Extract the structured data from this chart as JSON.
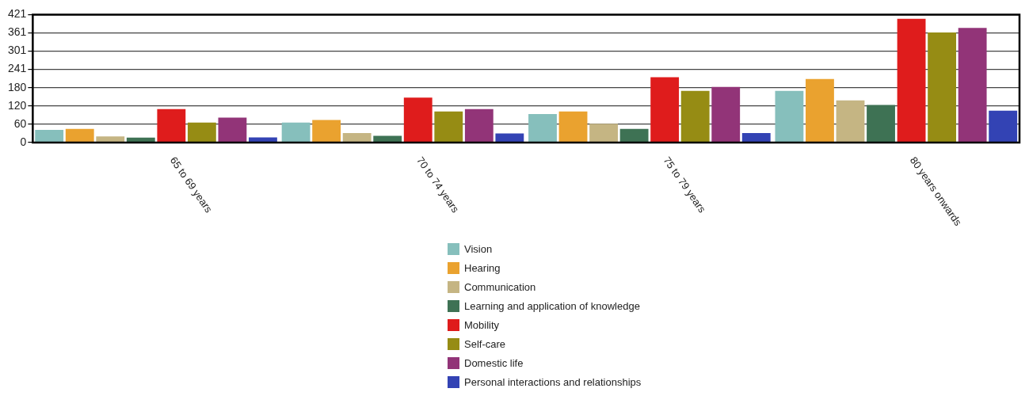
{
  "chart_data": {
    "type": "bar",
    "categories": [
      "65 to 69 years",
      "70 to 74 years",
      "75 to 79 years",
      "80 years onwards"
    ],
    "series": [
      {
        "name": "Vision",
        "color": "#86bfbc",
        "values": [
          42,
          66,
          94,
          170
        ]
      },
      {
        "name": "Hearing",
        "color": "#eaa22f",
        "values": [
          45,
          74,
          102,
          209
        ]
      },
      {
        "name": "Communication",
        "color": "#c5b583",
        "values": [
          20,
          31,
          62,
          139
        ]
      },
      {
        "name": "Learning and application of knowledge",
        "color": "#3e7254",
        "values": [
          16,
          22,
          45,
          124
        ]
      },
      {
        "name": "Mobility",
        "color": "#df1c1c",
        "values": [
          110,
          148,
          215,
          407
        ]
      },
      {
        "name": "Self-care",
        "color": "#968c14",
        "values": [
          66,
          102,
          170,
          362
        ]
      },
      {
        "name": "Domestic life",
        "color": "#923478",
        "values": [
          82,
          110,
          183,
          377
        ]
      },
      {
        "name": "Personal interactions and relationships",
        "color": "#3343b4",
        "values": [
          17,
          30,
          31,
          105
        ]
      }
    ],
    "ylim": [
      0,
      421
    ],
    "yticks": [
      0,
      60,
      120,
      180,
      241,
      301,
      361,
      421
    ],
    "grid": "y",
    "legend": "bottom"
  }
}
